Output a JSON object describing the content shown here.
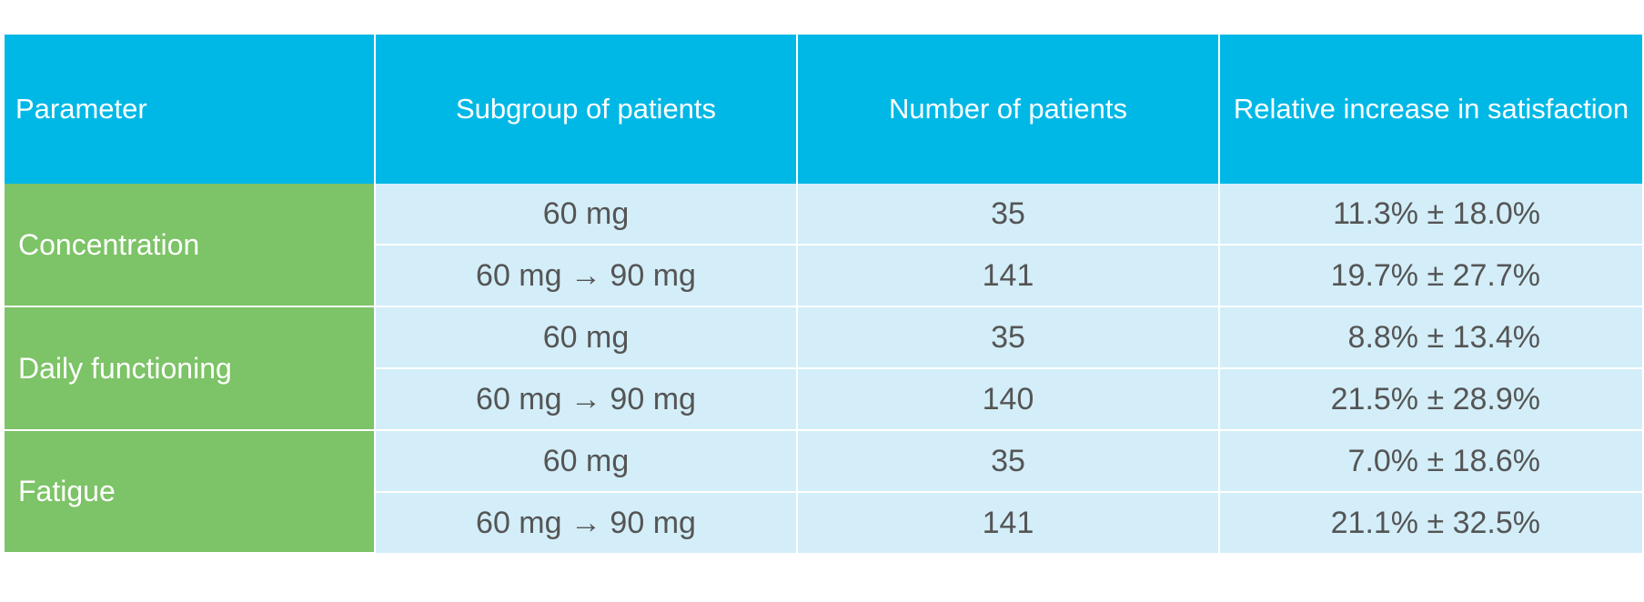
{
  "headers": {
    "parameter": "Parameter",
    "subgroup": "Subgroup of patients",
    "number": "Number of patients",
    "relative": "Relative increase in satisfaction"
  },
  "groups": [
    {
      "parameter": "Concentration",
      "rows": [
        {
          "subgroup": "60 mg",
          "number": "35",
          "relative": "11.3% ± 18.0%"
        },
        {
          "subgroup": "60 mg → 90 mg",
          "number": "141",
          "relative": "19.7% ± 27.7%"
        }
      ]
    },
    {
      "parameter": "Daily functioning",
      "rows": [
        {
          "subgroup": "60 mg",
          "number": "35",
          "relative": "8.8% ± 13.4%"
        },
        {
          "subgroup": "60 mg → 90 mg",
          "number": "140",
          "relative": "21.5% ± 28.9%"
        }
      ]
    },
    {
      "parameter": "Fatigue",
      "rows": [
        {
          "subgroup": "60 mg",
          "number": "35",
          "relative": "7.0% ± 18.6%"
        },
        {
          "subgroup": "60 mg → 90 mg",
          "number": "141",
          "relative": "21.1% ± 32.5%"
        }
      ]
    }
  ],
  "colors": {
    "header_bg": "#00b8e6",
    "param_bg": "#7dc367",
    "cell_bg": "#d3eef9",
    "cell_text": "#555555"
  }
}
